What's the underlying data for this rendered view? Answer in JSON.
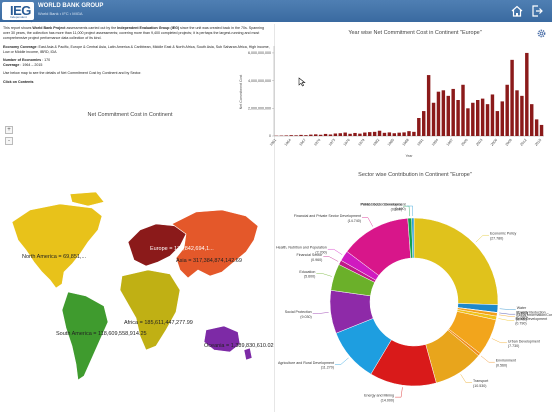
{
  "header": {
    "logo_text": "IEG",
    "logo_sub": "Independent Evaluation Group",
    "org_name": "WORLD BANK GROUP",
    "org_sub": "World Bank • IFC • MIGA",
    "home_icon": "home-icon",
    "exit_icon": "exit-icon"
  },
  "info": {
    "intro_1": "This report shows ",
    "intro_b1": "World Bank Project",
    "intro_2": " assessments carried out by the ",
    "intro_b2": "Independent Evaluation Group (IEG)",
    "intro_3": " since the unit was created back in the 70s. Spanning over 30 years, the collection has more than 11,000 project assessments; covering more than 9,400 completed projects; it is perhaps the largest-running and most comprehensive project performance data collection of its kind.",
    "econ_label": "Economy Coverage",
    "econ_value": ": East Asia & Pacific, Europe & Central Asia, Latin America & Caribbean, Middle East & North Africa, South Asia, Sub Saharan Africa, High income, Low or Middle income, IBRD, IDA",
    "num_label": "Number of Economies",
    "num_value": " : 170",
    "cov_label": "Coverage",
    "cov_value": " : 1964 – 2015",
    "instruction": "Use below map to see the details of Net Commitment Cost by Continent and by Sector.",
    "click": "Click on Contents"
  },
  "map": {
    "title": "Net Commitment Cost in Continent",
    "zoom_in": "+",
    "zoom_out": "-",
    "labels": {
      "north_america": "North America = 69,851,...",
      "europe": "Europe = 177,842,694,1...",
      "asia": "Asia = 317,384,874,142.69",
      "africa": "Africa = 185,611,447,277.99",
      "south_america": "South America = 118,609,558,914.25",
      "oceania": "Oceania = 1,389,830,610.02"
    },
    "colors": {
      "north_america": "#e8c21a",
      "south_america": "#3f9b2e",
      "europe": "#8b1a1a",
      "africa": "#c0b014",
      "asia": "#e4582a",
      "oceania": "#7d2aa6"
    }
  },
  "bar_title": "Year wise Net Commitment Cost in Continent \"Europe\"",
  "settings_icon": "gear-icon",
  "cursor_icon": "cursor-icon",
  "pie_title": "Sector wise Contribution in Continent \"Europe\"",
  "chart_data": [
    {
      "type": "bar",
      "title": "Year wise Net Commitment Cost in Continent \"Europe\"",
      "xlabel": "Year",
      "ylabel": "Net Commitment Cost",
      "ylim": [
        0,
        6500000000
      ],
      "yticks": [
        "0",
        "2,000,000,000",
        "4,000,000,000",
        "6,000,000,000"
      ],
      "ytick_values": [
        0,
        2000000000,
        4000000000,
        6000000000
      ],
      "xticks": [
        "1961",
        "1964",
        "1967",
        "1970",
        "1973",
        "1976",
        "1979",
        "1982",
        "1985",
        "1988",
        "1991",
        "1994",
        "1997",
        "2000",
        "2003",
        "2006",
        "2009",
        "2012",
        "2015"
      ],
      "color": "#8b1a1a",
      "x": [
        1961,
        1962,
        1963,
        1964,
        1965,
        1966,
        1967,
        1968,
        1969,
        1970,
        1971,
        1972,
        1973,
        1974,
        1975,
        1976,
        1977,
        1978,
        1979,
        1980,
        1981,
        1982,
        1983,
        1984,
        1985,
        1986,
        1987,
        1988,
        1989,
        1990,
        1991,
        1992,
        1993,
        1994,
        1995,
        1996,
        1997,
        1998,
        1999,
        2000,
        2001,
        2002,
        2003,
        2004,
        2005,
        2006,
        2007,
        2008,
        2009,
        2010,
        2011,
        2012,
        2013,
        2014,
        2015
      ],
      "values": [
        20000000,
        30000000,
        40000000,
        60000000,
        50000000,
        80000000,
        60000000,
        100000000,
        120000000,
        90000000,
        150000000,
        110000000,
        180000000,
        200000000,
        250000000,
        160000000,
        220000000,
        170000000,
        250000000,
        280000000,
        300000000,
        380000000,
        230000000,
        260000000,
        200000000,
        240000000,
        260000000,
        350000000,
        300000000,
        1300000000,
        1800000000,
        4400000000,
        2400000000,
        3200000000,
        3300000000,
        2900000000,
        3400000000,
        2600000000,
        3700000000,
        2000000000,
        2400000000,
        2600000000,
        2700000000,
        2300000000,
        3000000000,
        1800000000,
        2500000000,
        3700000000,
        5500000000,
        3300000000,
        2900000000,
        6000000000,
        2300000000,
        1200000000,
        800000000
      ]
    },
    {
      "type": "pie",
      "title": "Sector wise Contribution in Continent \"Europe\"",
      "labels": [
        "Economic Policy",
        "Water",
        "Poverty Reduction",
        "Global Information/Communications Technology",
        "Social Development",
        "Urban Development",
        "Environment",
        "Transport",
        "Energy and Mining",
        "Agriculture and Rural Development",
        "Social Protection",
        "Education",
        "Financial Sector",
        "Health, Nutrition and Population",
        "Financial and Private Sector Development",
        "Public Sector Governance",
        "Private Sector Development"
      ],
      "values": [
        27.78,
        1.6,
        0.08,
        0.7,
        0.79,
        7.73,
        0.56,
        10.53,
        14.0,
        11.27,
        9.03,
        5.6,
        0.96,
        2.2,
        14.74,
        0.8,
        0.49
      ],
      "percent_labels": [
        "(27.780)",
        "(1.600)",
        "(0.080)",
        "(0.700)",
        "(0.790)",
        "(7.730)",
        "(0.560)",
        "(10.530)",
        "(14.000)",
        "(11.270)",
        "(9.030)",
        "(5.600)",
        "(0.960)",
        "(2.200)",
        "(14.740)",
        "(0.800)",
        "(0.490)"
      ],
      "colors": [
        "#e0c21c",
        "#1e88c9",
        "#3a3fa8",
        "#f2a01c",
        "#f0c21a",
        "#f2a51c",
        "#f08c1a",
        "#e8a51c",
        "#d91a1a",
        "#1e9ee0",
        "#8e2aa8",
        "#6bb02a",
        "#c01a8a",
        "#d01ac0",
        "#d8168a",
        "#16a04a",
        "#2a9ed8"
      ]
    }
  ]
}
